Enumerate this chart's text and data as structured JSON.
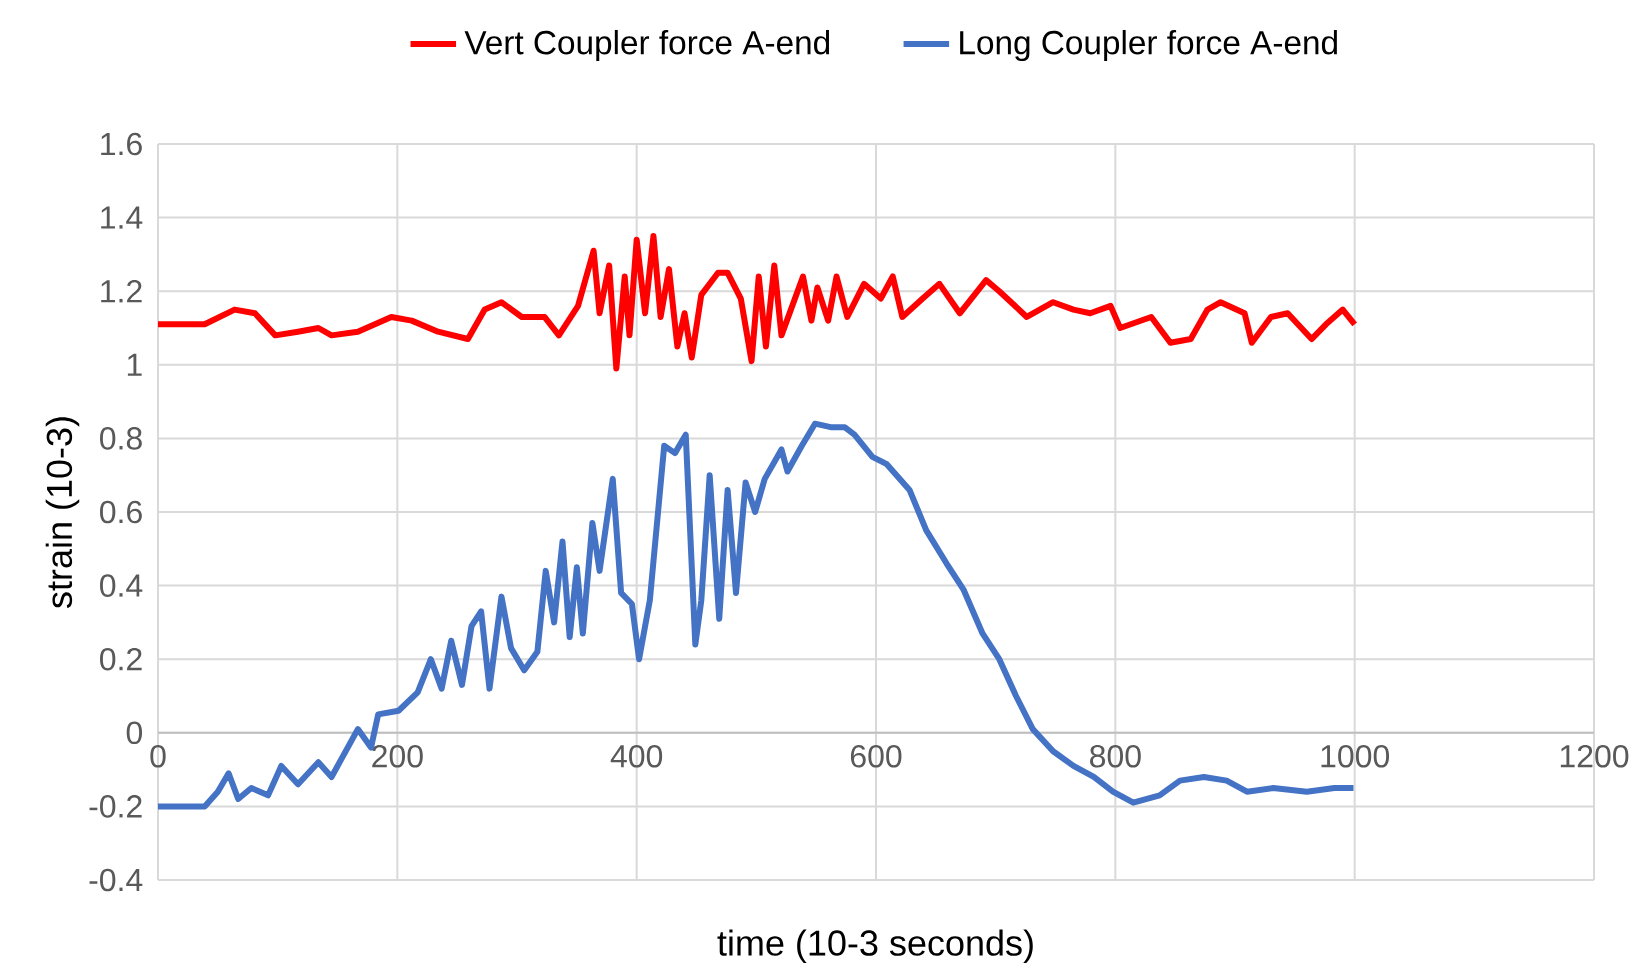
{
  "chart_data": {
    "type": "line",
    "xlabel": "time (10-3 seconds)",
    "ylabel": "strain (10-3)",
    "xlim": [
      0,
      1200
    ],
    "xticks": [
      0,
      200,
      400,
      600,
      800,
      1000,
      1200
    ],
    "ylim": [
      -0.4,
      1.6
    ],
    "yticks": [
      -0.4,
      -0.2,
      0,
      0.2,
      0.4,
      0.6,
      0.8,
      1,
      1.2,
      1.4,
      1.6
    ],
    "grid": true,
    "legend": "top",
    "marker": "none",
    "line_style": "solid",
    "series": [
      {
        "name": "Vert Coupler force A-end",
        "color": "#ff0000",
        "x": [
          0,
          39,
          64,
          81,
          98,
          117,
          134,
          145,
          167,
          195,
          212,
          234,
          259,
          273,
          287,
          304,
          323,
          335,
          351,
          364,
          369,
          377,
          383,
          390,
          394,
          400,
          407,
          414,
          420,
          427,
          434,
          440,
          446,
          454,
          468,
          476,
          487,
          496,
          502,
          508,
          515,
          521,
          539,
          546,
          551,
          560,
          567,
          576,
          590,
          604,
          614,
          622,
          639,
          653,
          670,
          692,
          703,
          726,
          748,
          765,
          779,
          796,
          804,
          830,
          846,
          863,
          877,
          888,
          908,
          914,
          930,
          944,
          964,
          976,
          990,
          1000
        ],
        "values": [
          1.11,
          1.11,
          1.15,
          1.14,
          1.08,
          1.09,
          1.1,
          1.08,
          1.09,
          1.13,
          1.12,
          1.09,
          1.07,
          1.15,
          1.17,
          1.13,
          1.13,
          1.08,
          1.16,
          1.31,
          1.14,
          1.27,
          0.99,
          1.24,
          1.08,
          1.34,
          1.14,
          1.35,
          1.13,
          1.26,
          1.05,
          1.14,
          1.02,
          1.19,
          1.25,
          1.25,
          1.18,
          1.01,
          1.24,
          1.05,
          1.27,
          1.08,
          1.24,
          1.12,
          1.21,
          1.12,
          1.24,
          1.13,
          1.22,
          1.18,
          1.24,
          1.13,
          1.18,
          1.22,
          1.14,
          1.23,
          1.2,
          1.13,
          1.17,
          1.15,
          1.14,
          1.16,
          1.1,
          1.13,
          1.06,
          1.07,
          1.15,
          1.17,
          1.14,
          1.06,
          1.13,
          1.14,
          1.07,
          1.11,
          1.15,
          1.11
        ]
      },
      {
        "name": "Long Coupler force A-end",
        "color": "#4472c4",
        "x": [
          0,
          39,
          50,
          59,
          67,
          78,
          92,
          103,
          117,
          134,
          145,
          167,
          178,
          184,
          201,
          217,
          228,
          237,
          245,
          254,
          262,
          270,
          277,
          287,
          295,
          306,
          317,
          324,
          331,
          338,
          344,
          350,
          355,
          363,
          369,
          380,
          387,
          396,
          402,
          411,
          423,
          432,
          441,
          449,
          454,
          461,
          469,
          476,
          483,
          491,
          499,
          507,
          521,
          526,
          538,
          549,
          563,
          574,
          582,
          597,
          609,
          628,
          642,
          659,
          673,
          689,
          703,
          717,
          731,
          748,
          765,
          782,
          798,
          815,
          837,
          854,
          874,
          893,
          910,
          932,
          960,
          983,
          999
        ],
        "values": [
          -0.2,
          -0.2,
          -0.16,
          -0.11,
          -0.18,
          -0.15,
          -0.17,
          -0.09,
          -0.14,
          -0.08,
          -0.12,
          0.01,
          -0.04,
          0.05,
          0.06,
          0.11,
          0.2,
          0.12,
          0.25,
          0.13,
          0.29,
          0.33,
          0.12,
          0.37,
          0.23,
          0.17,
          0.22,
          0.44,
          0.3,
          0.52,
          0.26,
          0.45,
          0.27,
          0.57,
          0.44,
          0.69,
          0.38,
          0.35,
          0.2,
          0.36,
          0.78,
          0.76,
          0.81,
          0.24,
          0.36,
          0.7,
          0.31,
          0.66,
          0.38,
          0.68,
          0.6,
          0.69,
          0.77,
          0.71,
          0.78,
          0.84,
          0.83,
          0.83,
          0.81,
          0.75,
          0.73,
          0.66,
          0.55,
          0.46,
          0.39,
          0.27,
          0.2,
          0.1,
          0.01,
          -0.05,
          -0.09,
          -0.12,
          -0.16,
          -0.19,
          -0.17,
          -0.13,
          -0.12,
          -0.13,
          -0.16,
          -0.15,
          -0.16,
          -0.15,
          -0.15
        ]
      }
    ]
  }
}
